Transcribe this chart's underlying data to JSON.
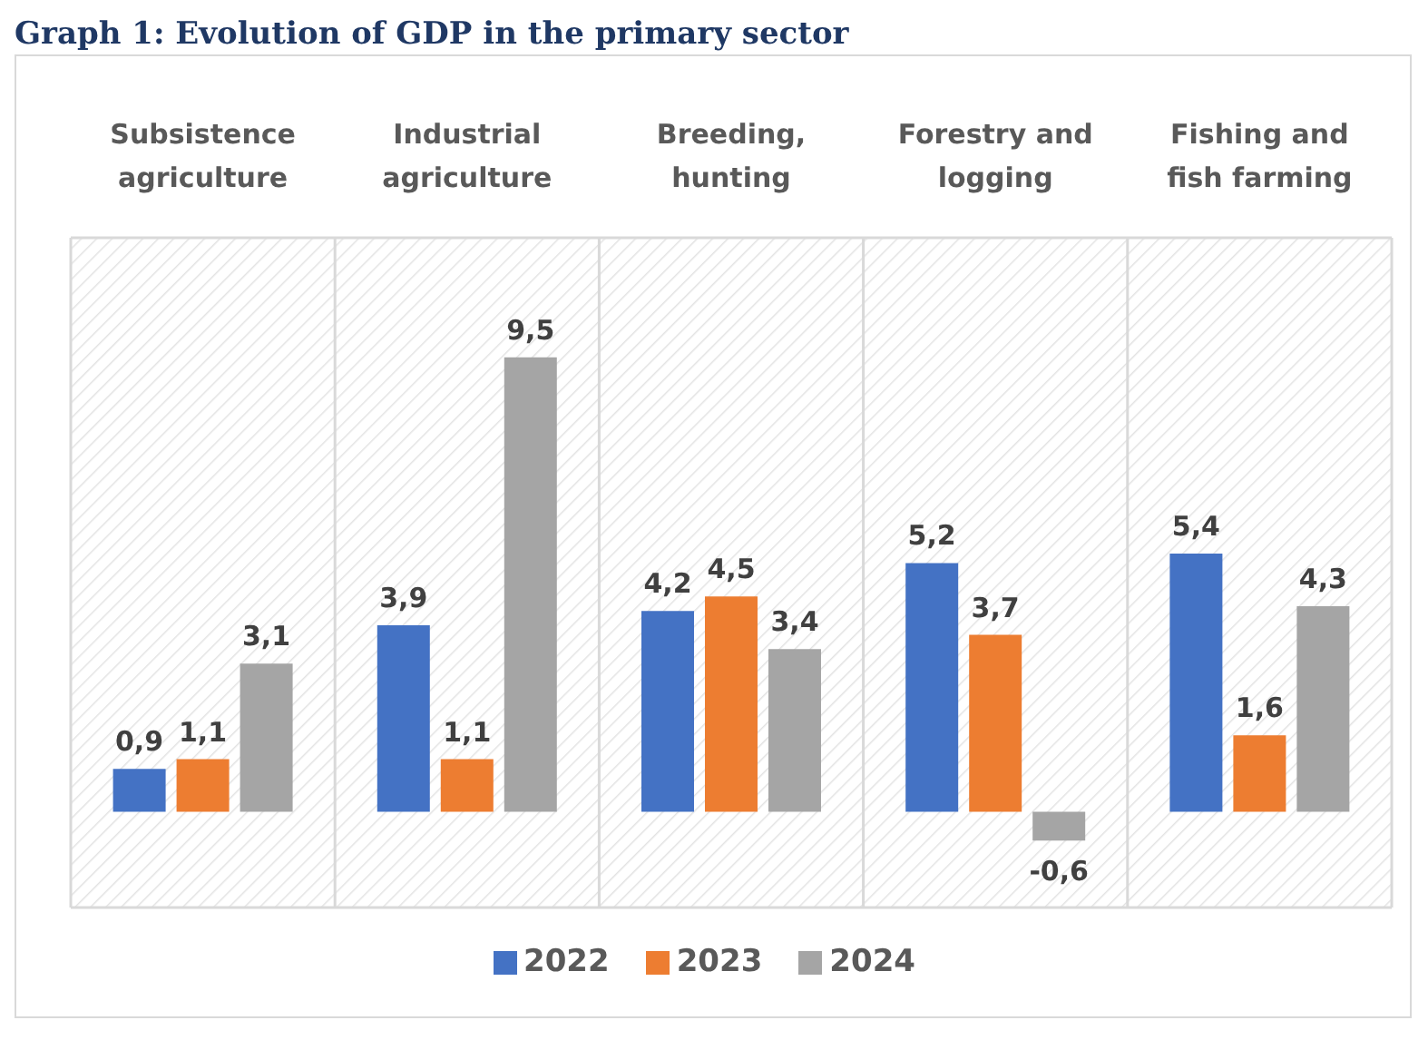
{
  "chart_data": {
    "type": "bar",
    "title": "Graph 1: Evolution of GDP in the primary sector",
    "categories": [
      "Subsistence agriculture",
      "Industrial agriculture",
      "Breeding, hunting",
      "Forestry and logging",
      "Fishing and fish farming"
    ],
    "series": [
      {
        "name": "2022",
        "color": "#4472c4",
        "values": [
          0.9,
          3.9,
          4.2,
          5.2,
          5.4
        ],
        "value_labels": [
          "0,9",
          "3,9",
          "4,2",
          "5,2",
          "5,4"
        ]
      },
      {
        "name": "2023",
        "color": "#ed7d31",
        "values": [
          1.1,
          1.1,
          4.5,
          3.7,
          1.6
        ],
        "value_labels": [
          "1,1",
          "1,1",
          "4,5",
          "3,7",
          "1,6"
        ]
      },
      {
        "name": "2024",
        "color": "#a5a5a5",
        "values": [
          3.1,
          9.5,
          3.4,
          -0.6,
          4.3
        ],
        "value_labels": [
          "3,1",
          "9,5",
          "3,4",
          "-0,6",
          "4,3"
        ]
      }
    ],
    "ylim": [
      -2,
      12
    ],
    "tick_labels": "x",
    "grid": true,
    "legend": "bottom"
  }
}
